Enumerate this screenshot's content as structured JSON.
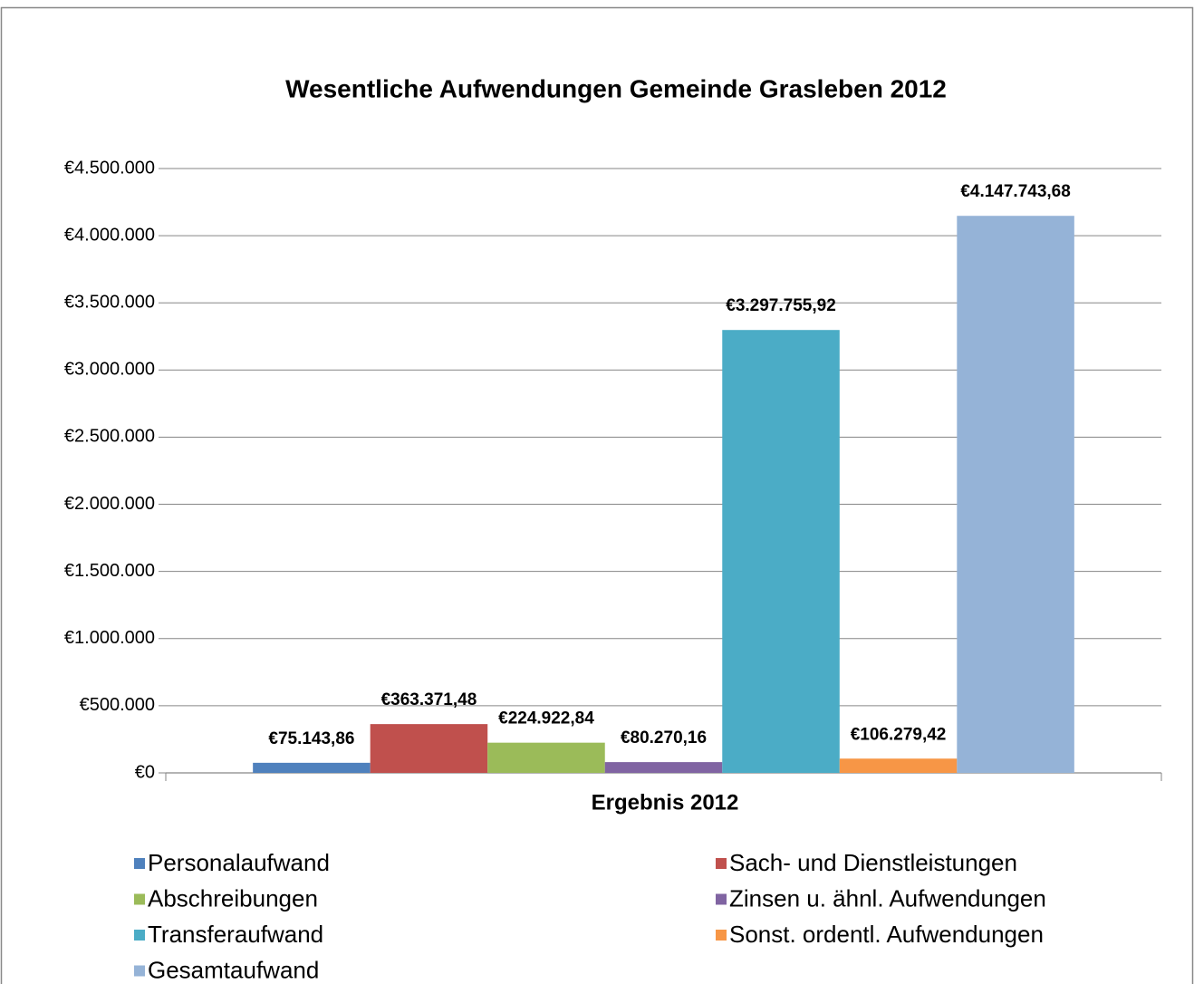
{
  "chart_data": {
    "type": "bar",
    "title": "Wesentliche Aufwendungen Gemeinde Grasleben 2012",
    "x_label": "Ergebnis 2012",
    "categories": [
      "Ergebnis 2012"
    ],
    "series": [
      {
        "name": "Personalaufwand",
        "color": "#4f81bd",
        "values": [
          75143.86
        ],
        "value_labels": [
          "€75.143,86"
        ]
      },
      {
        "name": "Sach- und Dienstleistungen",
        "color": "#c0504d",
        "values": [
          363371.48
        ],
        "value_labels": [
          "€363.371,48"
        ]
      },
      {
        "name": "Abschreibungen",
        "color": "#9bbb59",
        "values": [
          224922.84
        ],
        "value_labels": [
          "€224.922,84"
        ]
      },
      {
        "name": "Zinsen u. ähnl. Aufwendungen",
        "color": "#8064a2",
        "values": [
          80270.16
        ],
        "value_labels": [
          "€80.270,16"
        ]
      },
      {
        "name": "Transferaufwand",
        "color": "#4bacc6",
        "values": [
          3297755.92
        ],
        "value_labels": [
          "€3.297.755,92"
        ]
      },
      {
        "name": "Sonst. ordentl. Aufwendungen",
        "color": "#f79646",
        "values": [
          106279.42
        ],
        "value_labels": [
          "€106.279,42"
        ]
      },
      {
        "name": "Gesamtaufwand",
        "color": "#95b3d7",
        "values": [
          4147743.68
        ],
        "value_labels": [
          "€4.147.743,68"
        ]
      }
    ],
    "ylim": [
      0,
      4500000
    ],
    "yticks": [
      {
        "value": 0,
        "label": "€0"
      },
      {
        "value": 500000,
        "label": "€500.000"
      },
      {
        "value": 1000000,
        "label": "€1.000.000"
      },
      {
        "value": 1500000,
        "label": "€1.500.000"
      },
      {
        "value": 2000000,
        "label": "€2.000.000"
      },
      {
        "value": 2500000,
        "label": "€2.500.000"
      },
      {
        "value": 3000000,
        "label": "€3.000.000"
      },
      {
        "value": 3500000,
        "label": "€3.500.000"
      },
      {
        "value": 4000000,
        "label": "€4.000.000"
      },
      {
        "value": 4500000,
        "label": "€4.500.000"
      }
    ],
    "grid": true,
    "legend": "bottom"
  }
}
